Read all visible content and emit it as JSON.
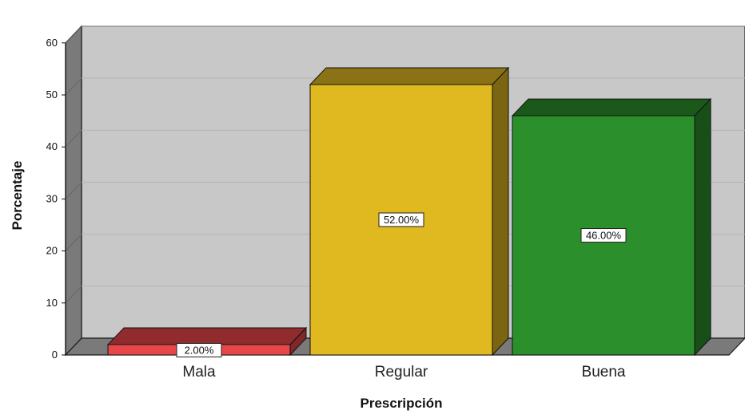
{
  "chart_data": {
    "type": "bar",
    "title": "",
    "xlabel": "Prescripción",
    "ylabel": "Porcentaje",
    "ylim": [
      0,
      60
    ],
    "yticks": [
      0,
      10,
      20,
      30,
      40,
      50,
      60
    ],
    "categories": [
      "Mala",
      "Regular",
      "Buena"
    ],
    "values": [
      2.0,
      52.0,
      46.0
    ],
    "data_labels": [
      "2.00%",
      "52.00%",
      "46.00%"
    ],
    "colors": [
      "#e8474a",
      "#e0b820",
      "#2b8f2c"
    ],
    "grid": true,
    "style": "3d",
    "background_color": "#c8c8c8"
  }
}
